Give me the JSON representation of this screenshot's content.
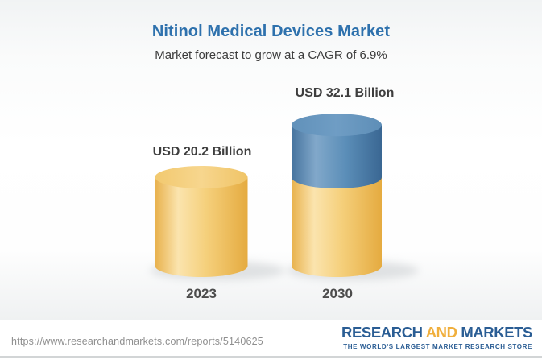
{
  "header": {
    "title": "Nitinol Medical Devices Market",
    "subtitle": "Market forecast to grow at a CAGR of 6.9%"
  },
  "chart_data": {
    "type": "bar",
    "style": "3d-cylinder-stacked",
    "title": "Nitinol Medical Devices Market",
    "subtitle": "Market forecast to grow at a CAGR of 6.9%",
    "cagr_percent": 6.9,
    "unit": "USD Billion",
    "categories": [
      "2023",
      "2030"
    ],
    "values": [
      20.2,
      32.1
    ],
    "value_labels": [
      "USD 20.2 Billion",
      "USD 32.1 Billion"
    ],
    "series": [
      {
        "name": "base-market",
        "values": [
          20.2,
          20.2
        ],
        "color": "#F3CD79"
      },
      {
        "name": "forecast-growth",
        "values": [
          0,
          11.9
        ],
        "color": "#5C8FB9"
      }
    ],
    "legend": "none",
    "grid": false,
    "axes": "none"
  },
  "footer": {
    "url": "https://www.researchandmarkets.com/reports/5140625",
    "logo": {
      "research": "RESEARCH",
      "and": "AND",
      "markets": "MARKETS",
      "tagline": "THE WORLD'S LARGEST MARKET RESEARCH STORE"
    }
  },
  "colors": {
    "title_blue": "#2E71AD",
    "subtitle_gray": "#3C3C3C",
    "bar_yellow": "#F3CD79",
    "bar_blue": "#5C8FB9",
    "label_dark": "#3E3E3E",
    "logo_blue": "#2A5D94",
    "logo_gold": "#F0AF3D",
    "url_gray": "#8F8F8F"
  }
}
